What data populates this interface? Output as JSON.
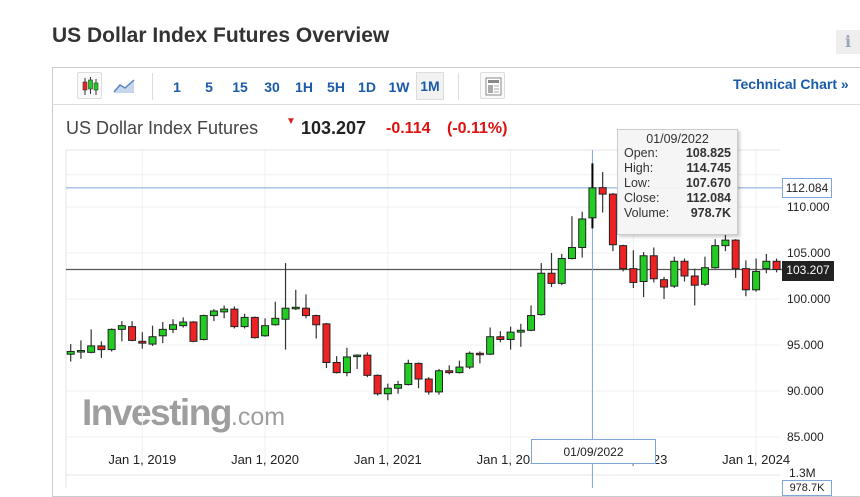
{
  "header": {
    "title": "US Dollar Index Futures Overview",
    "info_icon": "info-icon"
  },
  "toolbar": {
    "timeframes": [
      "1",
      "5",
      "15",
      "30",
      "1H",
      "5H",
      "1D",
      "1W",
      "1M"
    ],
    "selected": "1M",
    "technical_chart": "Technical Chart »"
  },
  "quote": {
    "name": "US Dollar Index Futures",
    "direction": "down",
    "last": "103.207",
    "change": "-0.114",
    "change_pct": "(-0.11%)"
  },
  "tooltip": {
    "date": "01/09/2022",
    "rows": [
      {
        "label": "Open:",
        "value": "108.825"
      },
      {
        "label": "High:",
        "value": "114.745"
      },
      {
        "label": "Low:",
        "value": "107.670"
      },
      {
        "label": "Close:",
        "value": "112.084"
      },
      {
        "label": "Volume:",
        "value": "978.7K"
      }
    ]
  },
  "crosshair": {
    "price": "112.084",
    "date": "01/09/2022"
  },
  "volume": {
    "axis_label": "1.3M",
    "current": "978.7K"
  },
  "logo": {
    "text": "Investing",
    "suffix": ".com"
  },
  "colors": {
    "up": "#22cc22",
    "down": "#ee2222",
    "accent": "#1a5aa8",
    "crosshair": "#7fa6d8"
  },
  "chart_data": {
    "type": "candlestick",
    "interval": "monthly",
    "start": "2018-06",
    "end": "2024-03",
    "ylim": [
      83,
      115
    ],
    "yticks": [
      "110.000",
      "105.000",
      "100.000",
      "95.000",
      "90.000",
      "85.000"
    ],
    "xticks": [
      "Jan 1, 2019",
      "Jan 1, 2020",
      "Jan 1, 2021",
      "Jan 1, 2022",
      "Jan 1, 2023",
      "Jan 1, 2024"
    ],
    "last_price": 103.207,
    "ohlc": [
      [
        94.0,
        95.1,
        93.2,
        94.3
      ],
      [
        94.3,
        95.5,
        93.5,
        94.4
      ],
      [
        94.2,
        96.7,
        94.1,
        94.9
      ],
      [
        94.9,
        95.4,
        93.6,
        94.5
      ],
      [
        94.5,
        96.8,
        94.3,
        96.7
      ],
      [
        96.7,
        97.6,
        95.4,
        97.1
      ],
      [
        97.0,
        97.6,
        95.4,
        95.5
      ],
      [
        95.4,
        96.4,
        94.6,
        95.2
      ],
      [
        95.1,
        97.1,
        94.9,
        95.9
      ],
      [
        96.0,
        97.5,
        95.2,
        96.7
      ],
      [
        96.7,
        97.8,
        96.3,
        97.2
      ],
      [
        97.1,
        98.0,
        96.9,
        97.5
      ],
      [
        97.5,
        97.6,
        95.3,
        95.4
      ],
      [
        95.6,
        98.3,
        95.5,
        98.2
      ],
      [
        98.2,
        98.9,
        97.6,
        98.7
      ],
      [
        98.6,
        99.3,
        97.9,
        98.9
      ],
      [
        98.9,
        99.2,
        96.8,
        97.0
      ],
      [
        97.0,
        98.4,
        96.8,
        98.0
      ],
      [
        98.0,
        98.1,
        95.7,
        95.8
      ],
      [
        96.0,
        97.9,
        95.9,
        97.1
      ],
      [
        97.2,
        99.7,
        97.1,
        97.9
      ],
      [
        97.8,
        103.9,
        94.5,
        99.0
      ],
      [
        99.0,
        101.0,
        98.8,
        99.1
      ],
      [
        99.0,
        100.5,
        97.9,
        98.2
      ],
      [
        98.2,
        98.3,
        95.7,
        97.2
      ],
      [
        97.3,
        97.4,
        92.5,
        93.1
      ],
      [
        93.1,
        93.8,
        91.9,
        92.0
      ],
      [
        92.0,
        94.7,
        91.6,
        93.7
      ],
      [
        93.8,
        94.0,
        92.4,
        93.9
      ],
      [
        93.9,
        94.2,
        91.5,
        91.7
      ],
      [
        91.7,
        91.8,
        89.5,
        89.7
      ],
      [
        89.7,
        90.8,
        89.0,
        90.3
      ],
      [
        90.3,
        91.1,
        89.7,
        90.7
      ],
      [
        90.7,
        93.4,
        90.6,
        93.0
      ],
      [
        93.0,
        93.1,
        90.3,
        91.3
      ],
      [
        91.3,
        91.5,
        89.6,
        89.9
      ],
      [
        89.9,
        92.4,
        89.6,
        92.2
      ],
      [
        92.2,
        92.8,
        91.8,
        92.0
      ],
      [
        92.0,
        93.3,
        91.9,
        92.6
      ],
      [
        92.6,
        94.3,
        92.4,
        94.1
      ],
      [
        94.1,
        94.3,
        93.0,
        94.0
      ],
      [
        94.0,
        96.9,
        93.9,
        95.9
      ],
      [
        95.9,
        96.5,
        95.3,
        95.6
      ],
      [
        95.6,
        97.0,
        94.5,
        96.4
      ],
      [
        96.4,
        97.3,
        94.8,
        96.6
      ],
      [
        96.6,
        99.3,
        96.5,
        98.2
      ],
      [
        98.3,
        103.9,
        98.2,
        102.8
      ],
      [
        102.8,
        105.0,
        101.3,
        101.7
      ],
      [
        101.7,
        104.9,
        101.5,
        104.4
      ],
      [
        104.4,
        109.0,
        104.3,
        105.6
      ],
      [
        105.6,
        109.5,
        104.5,
        108.7
      ],
      [
        108.825,
        114.745,
        107.67,
        112.084
      ],
      [
        112.1,
        113.8,
        109.4,
        111.4
      ],
      [
        111.4,
        111.5,
        105.2,
        105.9
      ],
      [
        105.8,
        105.9,
        103.0,
        103.3
      ],
      [
        103.3,
        105.3,
        101.2,
        101.8
      ],
      [
        101.9,
        105.1,
        100.2,
        104.7
      ],
      [
        104.7,
        105.6,
        101.8,
        102.2
      ],
      [
        102.1,
        102.4,
        100.0,
        101.3
      ],
      [
        101.4,
        104.6,
        101.2,
        104.1
      ],
      [
        104.1,
        104.4,
        101.9,
        102.5
      ],
      [
        102.5,
        103.3,
        99.3,
        101.5
      ],
      [
        101.6,
        104.6,
        101.4,
        103.4
      ],
      [
        103.4,
        106.5,
        103.3,
        105.8
      ],
      [
        105.8,
        107.0,
        105.2,
        106.4
      ],
      [
        106.4,
        106.5,
        102.3,
        103.3
      ],
      [
        103.3,
        104.2,
        100.3,
        101.0
      ],
      [
        101.0,
        104.4,
        100.8,
        103.0
      ],
      [
        103.3,
        104.9,
        102.8,
        104.1
      ],
      [
        104.1,
        104.4,
        102.9,
        103.207
      ]
    ]
  }
}
